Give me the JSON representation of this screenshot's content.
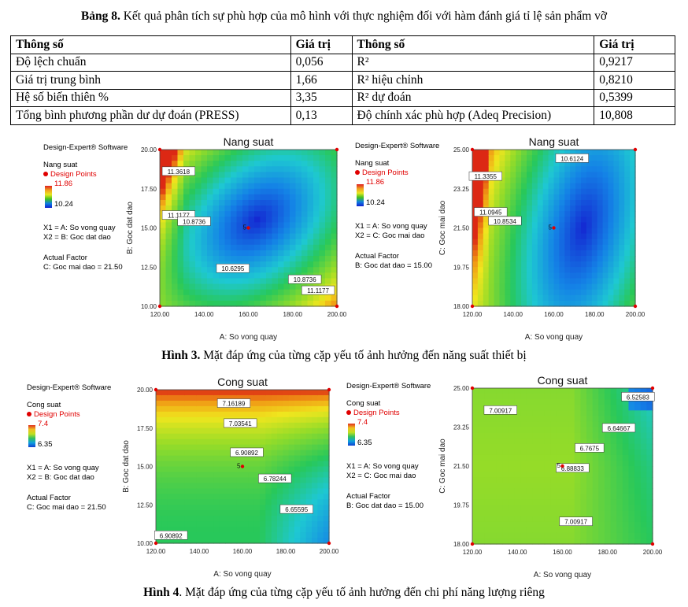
{
  "table": {
    "caption_label": "Bảng 8.",
    "caption_text": " Kết quả phân tích sự phù hợp của mô hình với thực nghiệm đối với hàm đánh giá tỉ lệ sản phẩm vỡ",
    "header": [
      "Thông số",
      "Giá trị",
      "Thông số",
      "Giá trị"
    ],
    "rows": [
      [
        "Độ lệch chuẩn",
        "0,056",
        "R²",
        "0,9217"
      ],
      [
        "Giá trị trung bình",
        "1,66",
        "R² hiệu chỉnh",
        "0,8210"
      ],
      [
        "Hệ số biến thiên %",
        "3,35",
        "R² dự đoán",
        "0,5399"
      ],
      [
        "Tổng bình phương phần dư dự đoán (PRESS)",
        "0,13",
        "Độ chính xác phù hợp (Adeq Precision)",
        "10,808"
      ]
    ]
  },
  "figure3": {
    "caption_label": "Hình 3.",
    "caption_text": " Mặt đáp ứng của từng cặp yếu tố ảnh hưởng đến năng suất thiết bị"
  },
  "figure4": {
    "caption_label": "Hình 4",
    "caption_text": ". Mặt đáp ứng của từng cặp yếu tố ảnh hưởng đến chi phí năng lượng riêng"
  },
  "panels": [
    {
      "software": "Design-Expert® Software",
      "response": "Nang suat",
      "design_points": "Design Points",
      "max": "11.86",
      "min": "10.24",
      "x1": "X1 = A: So vong quay",
      "x2": "X2 = B: Goc dat dao",
      "actual_factor": "Actual Factor",
      "factor_value": "C: Goc mai dao = 21.50"
    },
    {
      "software": "Design-Expert® Software",
      "response": "Nang suat",
      "design_points": "Design Points",
      "max": "11.86",
      "min": "10.24",
      "x1": "X1 = A: So vong quay",
      "x2": "X2 = C: Goc mai dao",
      "actual_factor": "Actual Factor",
      "factor_value": "B: Goc dat dao = 15.00"
    },
    {
      "software": "Design-Expert® Software",
      "response": "Cong suat",
      "design_points": "Design Points",
      "max": "7.4",
      "min": "6.35",
      "x1": "X1 = A: So vong quay",
      "x2": "X2 = B: Goc dat dao",
      "actual_factor": "Actual Factor",
      "factor_value": "C: Goc mai dao = 21.50"
    },
    {
      "software": "Design-Expert® Software",
      "response": "Cong suat",
      "design_points": "Design Points",
      "max": "7.4",
      "min": "6.35",
      "x1": "X1 = A: So vong quay",
      "x2": "X2 = C: Goc mai dao",
      "actual_factor": "Actual Factor",
      "factor_value": "B: Goc dat dao = 15.00"
    }
  ],
  "chart_data": [
    {
      "type": "heatmap",
      "title": "Nang suat",
      "xlabel": "A: So vong quay",
      "ylabel": "B: Goc dat dao",
      "xlim": [
        120,
        200
      ],
      "ylim": [
        10,
        20
      ],
      "x_ticks": [
        "120.00",
        "140.00",
        "160.00",
        "180.00",
        "200.00"
      ],
      "y_ticks": [
        "10.00",
        "12.50",
        "15.00",
        "17.50",
        "20.00"
      ],
      "contour_labels": [
        {
          "label": "11.3618",
          "x": 128.5,
          "y": 18.6
        },
        {
          "label": "11.1177",
          "x": 128.5,
          "y": 15.8
        },
        {
          "label": "10.8736",
          "x": 135.5,
          "y": 15.4
        },
        {
          "label": "10.6295",
          "x": 153,
          "y": 12.4
        },
        {
          "label": "10.8736",
          "x": 185.5,
          "y": 11.7
        },
        {
          "label": "11.1177",
          "x": 191.5,
          "y": 11.0
        }
      ],
      "center_point": {
        "x": 160,
        "y": 15,
        "label": "5"
      },
      "design_points": [
        [
          120,
          10
        ],
        [
          120,
          20
        ],
        [
          200,
          10
        ],
        [
          200,
          20
        ]
      ]
    },
    {
      "type": "heatmap",
      "title": "Nang suat",
      "xlabel": "A: So vong quay",
      "ylabel": "C: Goc mai dao",
      "xlim": [
        120,
        200
      ],
      "ylim": [
        18,
        25
      ],
      "x_ticks": [
        "120.00",
        "140.00",
        "160.00",
        "180.00",
        "200.00"
      ],
      "y_ticks": [
        "18.00",
        "19.75",
        "21.50",
        "23.25",
        "25.00"
      ],
      "contour_labels": [
        {
          "label": "10.6124",
          "x": 169,
          "y": 24.6
        },
        {
          "label": "11.3355",
          "x": 126.5,
          "y": 23.8
        },
        {
          "label": "11.0945",
          "x": 129,
          "y": 22.2
        },
        {
          "label": "10.8534",
          "x": 136,
          "y": 21.8
        }
      ],
      "center_point": {
        "x": 160,
        "y": 21.5,
        "label": "5"
      },
      "design_points": [
        [
          120,
          18
        ],
        [
          120,
          25
        ],
        [
          200,
          18
        ],
        [
          200,
          25
        ]
      ]
    },
    {
      "type": "heatmap",
      "title": "Cong suat",
      "xlabel": "A: So vong quay",
      "ylabel": "B: Goc dat dao",
      "xlim": [
        120,
        200
      ],
      "ylim": [
        10,
        20
      ],
      "x_ticks": [
        "120.00",
        "140.00",
        "160.00",
        "180.00",
        "200.00"
      ],
      "y_ticks": [
        "10.00",
        "12.50",
        "15.00",
        "17.50",
        "20.00"
      ],
      "contour_labels": [
        {
          "label": "7.16189",
          "x": 156,
          "y": 19.1
        },
        {
          "label": "7.03541",
          "x": 159,
          "y": 17.8
        },
        {
          "label": "6.90892",
          "x": 162,
          "y": 15.9
        },
        {
          "label": "6.78244",
          "x": 175,
          "y": 14.2
        },
        {
          "label": "6.65595",
          "x": 185,
          "y": 12.2
        },
        {
          "label": "6.90892",
          "x": 127,
          "y": 10.5
        }
      ],
      "center_point": {
        "x": 160,
        "y": 15,
        "label": "5"
      },
      "design_points": [
        [
          120,
          10
        ],
        [
          120,
          20
        ],
        [
          200,
          10
        ],
        [
          200,
          20
        ]
      ]
    },
    {
      "type": "heatmap",
      "title": "Cong suat",
      "xlabel": "A: So vong quay",
      "ylabel": "C: Goc mai dao",
      "xlim": [
        120,
        200
      ],
      "ylim": [
        18,
        25
      ],
      "x_ticks": [
        "120.00",
        "140.00",
        "160.00",
        "180.00",
        "200.00"
      ],
      "y_ticks": [
        "18.00",
        "19.75",
        "21.50",
        "23.25",
        "25.00"
      ],
      "contour_labels": [
        {
          "label": "7.00917",
          "x": 132.5,
          "y": 24.0
        },
        {
          "label": "6.52583",
          "x": 193.5,
          "y": 24.6
        },
        {
          "label": "6.64667",
          "x": 185,
          "y": 23.2
        },
        {
          "label": "6.7675",
          "x": 172,
          "y": 22.3
        },
        {
          "label": "6.88833",
          "x": 164.5,
          "y": 21.4
        },
        {
          "label": "7.00917",
          "x": 166,
          "y": 19.0
        }
      ],
      "center_point": {
        "x": 160,
        "y": 21.5,
        "label": "5"
      },
      "design_points": [
        [
          120,
          18
        ],
        [
          120,
          25
        ],
        [
          200,
          18
        ],
        [
          200,
          25
        ]
      ]
    }
  ]
}
